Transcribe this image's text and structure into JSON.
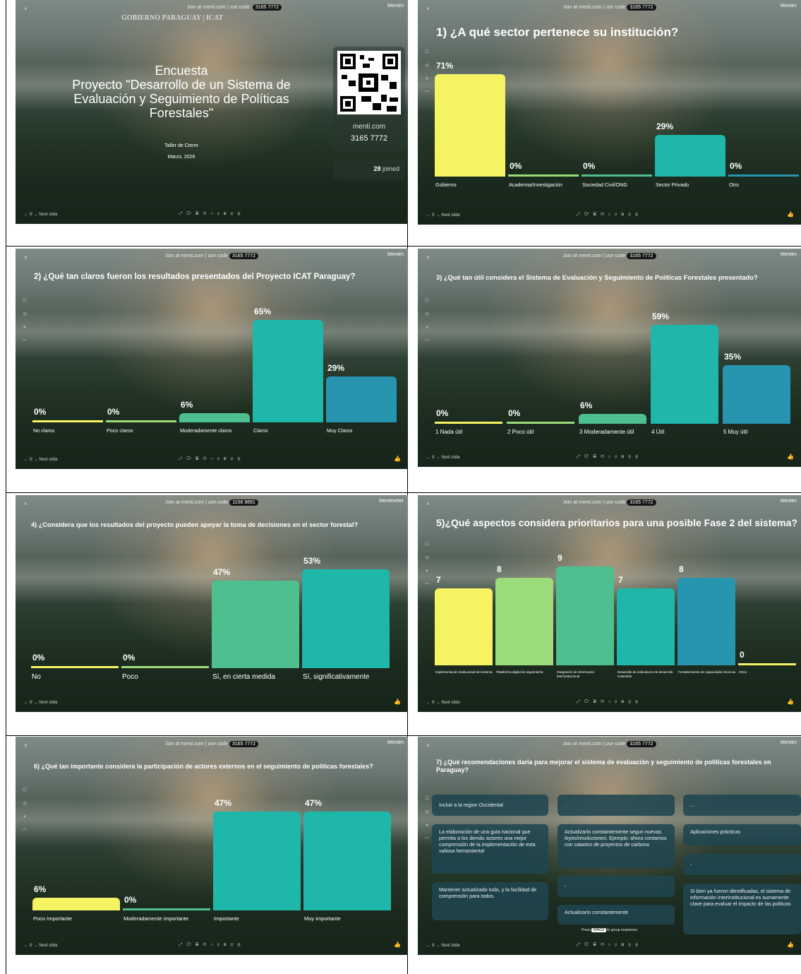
{
  "common": {
    "join_text": "Join at menti.com | use code",
    "brand": "Mentimeter",
    "brand_short": "Mentim",
    "next_slide": "Next slide",
    "close": "×"
  },
  "slide0": {
    "code": "3165 7772",
    "logos": "GOBIERNO PARAGUAY | ICAT",
    "title1": "Encuesta",
    "title2": "Proyecto \"Desarrollo de un Sistema de Evaluación y Seguimiento de Políticas Forestales\"",
    "event": "Taller de Cierre",
    "date": "Marzo, 2026",
    "menti_url": "menti.com",
    "menti_code": "3165 7772",
    "joined_count": "28",
    "joined_label": "joined"
  },
  "slide1": {
    "code": "3165 7772",
    "title": "1) ¿A qué sector pertenece su institución?",
    "chart_data": {
      "type": "bar",
      "categories": [
        "Gobierno",
        "Academia/Investigación",
        "Sociedad Civil/ONG",
        "Sector Privado",
        "Otro"
      ],
      "values": [
        71,
        0,
        0,
        29,
        0
      ],
      "labels": [
        "71%",
        "0%",
        "0%",
        "29%",
        "0%"
      ],
      "colors": [
        "#f6f363",
        "#9bdc7a",
        "#4ec08f",
        "#1eb7a9",
        "#2794b0"
      ]
    }
  },
  "slide2": {
    "code": "3165 7772",
    "title": "2) ¿Qué tan claros fueron los resultados presentados del Proyecto ICAT Paraguay?",
    "chart_data": {
      "type": "bar",
      "categories": [
        "No claros",
        "Poco claros",
        "Moderadamente claros",
        "Claros",
        "Muy Claros"
      ],
      "values": [
        0,
        0,
        6,
        65,
        29
      ],
      "labels": [
        "0%",
        "0%",
        "6%",
        "65%",
        "29%"
      ],
      "colors": [
        "#f6f363",
        "#9bdc7a",
        "#4ec08f",
        "#1eb7a9",
        "#2794b0"
      ]
    }
  },
  "slide3": {
    "code": "3165 7772",
    "title": "3) ¿Qué tan útil considera el Sistema de Evaluación y Seguimiento de Políticas Forestales presentado?",
    "chart_data": {
      "type": "bar",
      "categories": [
        "1 Nada útil",
        "2 Poco útil",
        "3 Moderadamente útil",
        "4 Útil",
        "5 Muy útil"
      ],
      "values": [
        0,
        0,
        6,
        59,
        35
      ],
      "labels": [
        "0%",
        "0%",
        "6%",
        "59%",
        "35%"
      ],
      "colors": [
        "#f6f363",
        "#9bdc7a",
        "#4ec08f",
        "#1eb7a9",
        "#2794b0"
      ]
    }
  },
  "slide4": {
    "code": "1158 9891",
    "title": "4) ¿Considera que los resultados del proyecto pueden apoyar la toma de decisiones en el sector forestal?",
    "chart_data": {
      "type": "bar",
      "categories": [
        "No",
        "Poco",
        "Sí, en cierta medida",
        "Sí, significativamente"
      ],
      "values": [
        0,
        0,
        47,
        53
      ],
      "labels": [
        "0%",
        "0%",
        "47%",
        "53%"
      ],
      "colors": [
        "#f6f363",
        "#9bdc7a",
        "#4ec08f",
        "#1eb7a9"
      ]
    }
  },
  "slide5": {
    "code": "3165 7772",
    "title": "5)¿Qué aspectos considera prioritarios para una posible Fase 2 del sistema?",
    "chart_data": {
      "type": "bar",
      "categories": [
        "Implementación institucional del sistema",
        "Plataforma digital de seguimiento",
        "Integración de información interinstitucional",
        "Desarrollo de indicadores de desarrollo sostenible",
        "Fortalecimiento de capacidades técnicas",
        "Otros"
      ],
      "values": [
        7,
        8,
        9,
        7,
        8,
        0
      ],
      "labels": [
        "7",
        "8",
        "9",
        "7",
        "8",
        "0"
      ],
      "colors": [
        "#f6f363",
        "#9bdc7a",
        "#4ec08f",
        "#1eb7a9",
        "#2794b0",
        "#f6f363"
      ]
    }
  },
  "slide6": {
    "code": "3165 7772",
    "title": "6) ¿Qué tan importante considera la participación de actores externos en el seguimiento de políticas forestales?",
    "chart_data": {
      "type": "bar",
      "categories": [
        "Poco Importante",
        "Moderadamente importante",
        "Importante",
        "Muy importante"
      ],
      "values": [
        6,
        0,
        47,
        47
      ],
      "labels": [
        "6%",
        "0%",
        "47%",
        "47%"
      ],
      "colors": [
        "#f6f363",
        "#4ec08f",
        "#1eb7a9",
        "#1eb7a9"
      ]
    }
  },
  "slide7": {
    "code": "3165 7772",
    "title": "7) ¿Qué recomendaciones daría para mejorar el sistema de evaluación y seguimiento de políticas forestales en Paraguay?",
    "responses": [
      "Incluir a la region Occidental",
      ".",
      "...",
      "La elaboración de una guia nacional que permita a los demás actores una mejor comprensión de la implementación de esta valiosa herramienta!",
      "Actualizarlo constantemente segun nuevas leyes/resoluciones. Ejemplo: ahora contamos con catastro de proyectos de carbono",
      "Aplicaciones prácticas",
      "-",
      "-",
      "Mantener actualizado todo, y la facilidad de comprensión para todos.",
      "Actualizarlo constantemente",
      "Si bien ya fueron identificadas, el sistema de información interinstitucional es sumamente clave para evaluar el impacto de las politicas"
    ],
    "hint_press": "Press",
    "hint_key": "SPACE",
    "hint_rest": "to group responses"
  }
}
